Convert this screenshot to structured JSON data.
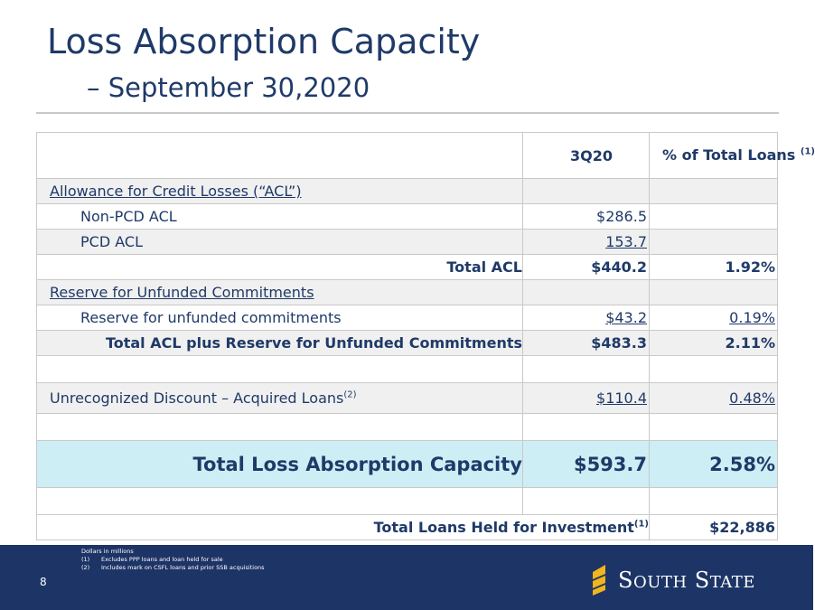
{
  "header": {
    "title": "Loss Absorption Capacity",
    "subtitle": "– September 30,2020"
  },
  "table": {
    "col_3q20": "3Q20",
    "col_pct": "% of Total Loans",
    "col_pct_sup": "(1)",
    "acl_heading": "Allowance for Credit Losses (“ACL”)",
    "non_pcd_label": "Non-PCD ACL",
    "non_pcd_value": "$286.5",
    "pcd_label": "PCD ACL",
    "pcd_value": "153.7",
    "total_acl_label": "Total ACL",
    "total_acl_value": "$440.2",
    "total_acl_pct": "1.92%",
    "reserve_heading": "Reserve for Unfunded Commitments",
    "reserve_label": "Reserve for unfunded commitments",
    "reserve_value": "$43.2",
    "reserve_pct": "0.19%",
    "total_plus_label": "Total ACL plus Reserve for Unfunded Commitments",
    "total_plus_value": "$483.3",
    "total_plus_pct": "2.11%",
    "discount_label": "Unrecognized Discount – Acquired Loans",
    "discount_sup": "(2)",
    "discount_value": "$110.4",
    "discount_pct": "0.48%",
    "capacity_label": "Total Loss Absorption Capacity",
    "capacity_value": "$593.7",
    "capacity_pct": "2.58%",
    "loans_label": "Total Loans Held for Investment",
    "loans_sup": "(1)",
    "loans_value": "$22,886"
  },
  "footer": {
    "page_number": "8",
    "note_units": "Dollars in millions",
    "note1_mark": "(1)",
    "note1_text": "Excludes PPP loans and loan held for sale",
    "note2_mark": "(2)",
    "note2_text": "Includes mark on CSFL loans and prior SSB acquisitions",
    "logo_text_first_cap": "S",
    "logo_text_first_rest": "OUTH",
    "logo_text_second_cap": "S",
    "logo_text_second_rest": "TATE",
    "logo_colors": {
      "mark": "#f2b51c",
      "text": "#ffffff",
      "band": "#1d3466"
    }
  }
}
